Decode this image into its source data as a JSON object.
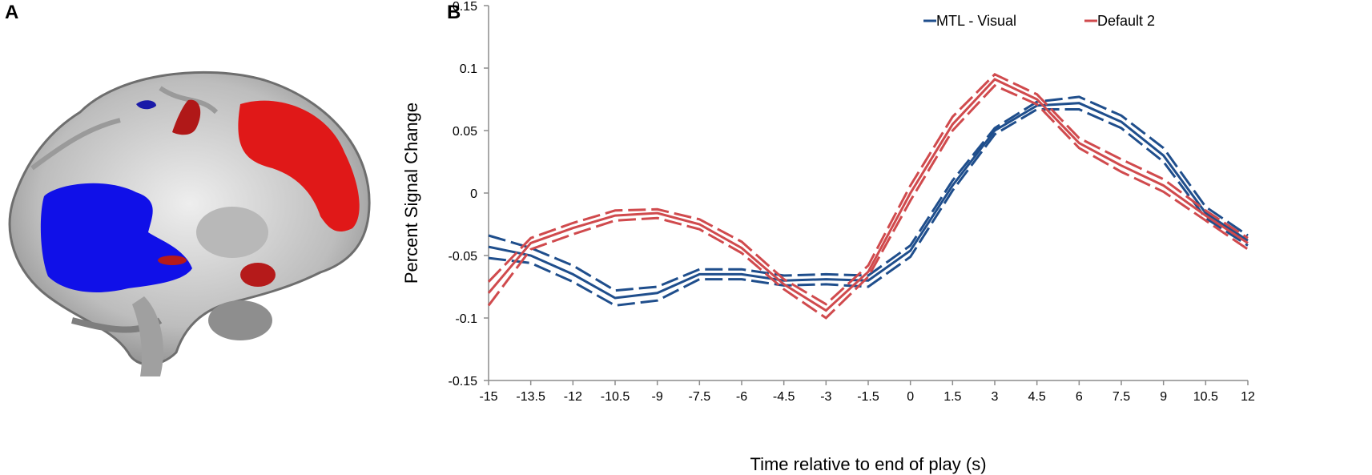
{
  "panels": {
    "a": "A",
    "b": "B"
  },
  "colors": {
    "mtl": "#1f4e8c",
    "dmn": "#d04a4d",
    "brain_blue": "#1010e8",
    "brain_red": "#e01818"
  },
  "brain_image": {
    "icon": "sagittal-brain-slice-icon"
  },
  "chart_data": {
    "type": "line",
    "xlabel": "Time relative to end of play (s)",
    "ylabel": "Percent Signal Change",
    "x": [
      -15,
      -13.5,
      -12,
      -10.5,
      -9,
      -7.5,
      -6,
      -4.5,
      -3,
      -1.5,
      0,
      1.5,
      3,
      4.5,
      6,
      7.5,
      9,
      10.5,
      12
    ],
    "xtick_labels": [
      "-15",
      "-13.5",
      "-12",
      "-10.5",
      "-9",
      "-7.5",
      "-6",
      "-4.5",
      "-3",
      "-1.5",
      "0",
      "1.5",
      "3",
      "4.5",
      "6",
      "7.5",
      "9",
      "10.5",
      "12"
    ],
    "ylim": [
      -0.15,
      0.15
    ],
    "yticks": [
      -0.15,
      -0.1,
      -0.05,
      0,
      0.05,
      0.1,
      0.15
    ],
    "ytick_labels": [
      "-0.15",
      "-0.1",
      "-0.05",
      "0",
      "0.05",
      "0.1",
      "0.15"
    ],
    "legend_position": "top-right",
    "grid": false,
    "series": [
      {
        "name": "MTL - Visual",
        "color": "#1f4e8c",
        "values": [
          -0.043,
          -0.05,
          -0.065,
          -0.084,
          -0.08,
          -0.065,
          -0.065,
          -0.07,
          -0.069,
          -0.07,
          -0.046,
          0.006,
          0.05,
          0.07,
          0.072,
          0.057,
          0.03,
          -0.016,
          -0.038
        ],
        "upper": [
          -0.034,
          -0.044,
          -0.058,
          -0.078,
          -0.075,
          -0.061,
          -0.061,
          -0.066,
          -0.065,
          -0.066,
          -0.042,
          0.01,
          0.052,
          0.073,
          0.077,
          0.062,
          0.036,
          -0.011,
          -0.034
        ],
        "lower": [
          -0.052,
          -0.056,
          -0.071,
          -0.09,
          -0.086,
          -0.069,
          -0.069,
          -0.074,
          -0.073,
          -0.075,
          -0.051,
          0.002,
          0.047,
          0.067,
          0.067,
          0.052,
          0.025,
          -0.02,
          -0.042
        ]
      },
      {
        "name": "Default 2",
        "color": "#d04a4d",
        "values": [
          -0.08,
          -0.04,
          -0.028,
          -0.018,
          -0.016,
          -0.025,
          -0.044,
          -0.073,
          -0.094,
          -0.063,
          0.0,
          0.055,
          0.091,
          0.075,
          0.04,
          0.022,
          0.006,
          -0.018,
          -0.04
        ],
        "upper": [
          -0.071,
          -0.036,
          -0.024,
          -0.014,
          -0.013,
          -0.021,
          -0.039,
          -0.069,
          -0.089,
          -0.058,
          0.006,
          0.061,
          0.095,
          0.079,
          0.044,
          0.027,
          0.011,
          -0.014,
          -0.036
        ],
        "lower": [
          -0.09,
          -0.045,
          -0.033,
          -0.022,
          -0.02,
          -0.029,
          -0.048,
          -0.077,
          -0.1,
          -0.067,
          -0.006,
          0.05,
          0.086,
          0.071,
          0.036,
          0.017,
          0.001,
          -0.022,
          -0.045
        ]
      }
    ]
  }
}
